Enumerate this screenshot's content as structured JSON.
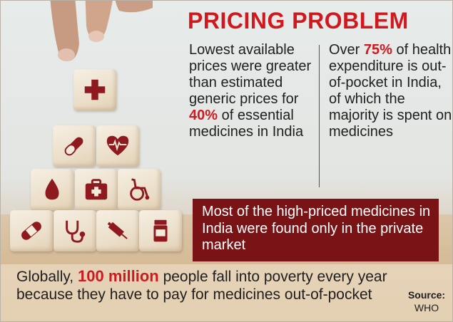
{
  "title": "PRICING PROBLEM",
  "left_text": {
    "before": "Lowest available prices were greater than estimated generic prices for",
    "highlight": "40%",
    "after": "of essential medicines in India"
  },
  "right_text": {
    "before": "Over",
    "highlight": "75%",
    "after": "of health expenditure is out-of-pocket in India, of which the majority is spent on medicines"
  },
  "box_text": "Most of the high-priced medicines in India were found only in the private market",
  "bottom_text": {
    "before": "Globally,",
    "highlight": "100 million",
    "after": "people fall into poverty every year because they have to pay for medicines out-of-pocket"
  },
  "source": {
    "label": "Source:",
    "value": "WHO"
  },
  "colors": {
    "accent_red": "#d0191e",
    "box_maroon": "#7a1315",
    "icon_maroon": "#8e1a20"
  },
  "blocks": {
    "top": "medical-cross-icon",
    "row2": [
      "pill-capsule-icon",
      "heart-ecg-icon"
    ],
    "row3": [
      "blood-drop-icon",
      "first-aid-kit-icon",
      "wheelchair-icon"
    ],
    "row4": [
      "bandage-icon",
      "stethoscope-icon",
      "syringe-icon",
      "pill-bottle-icon"
    ]
  }
}
